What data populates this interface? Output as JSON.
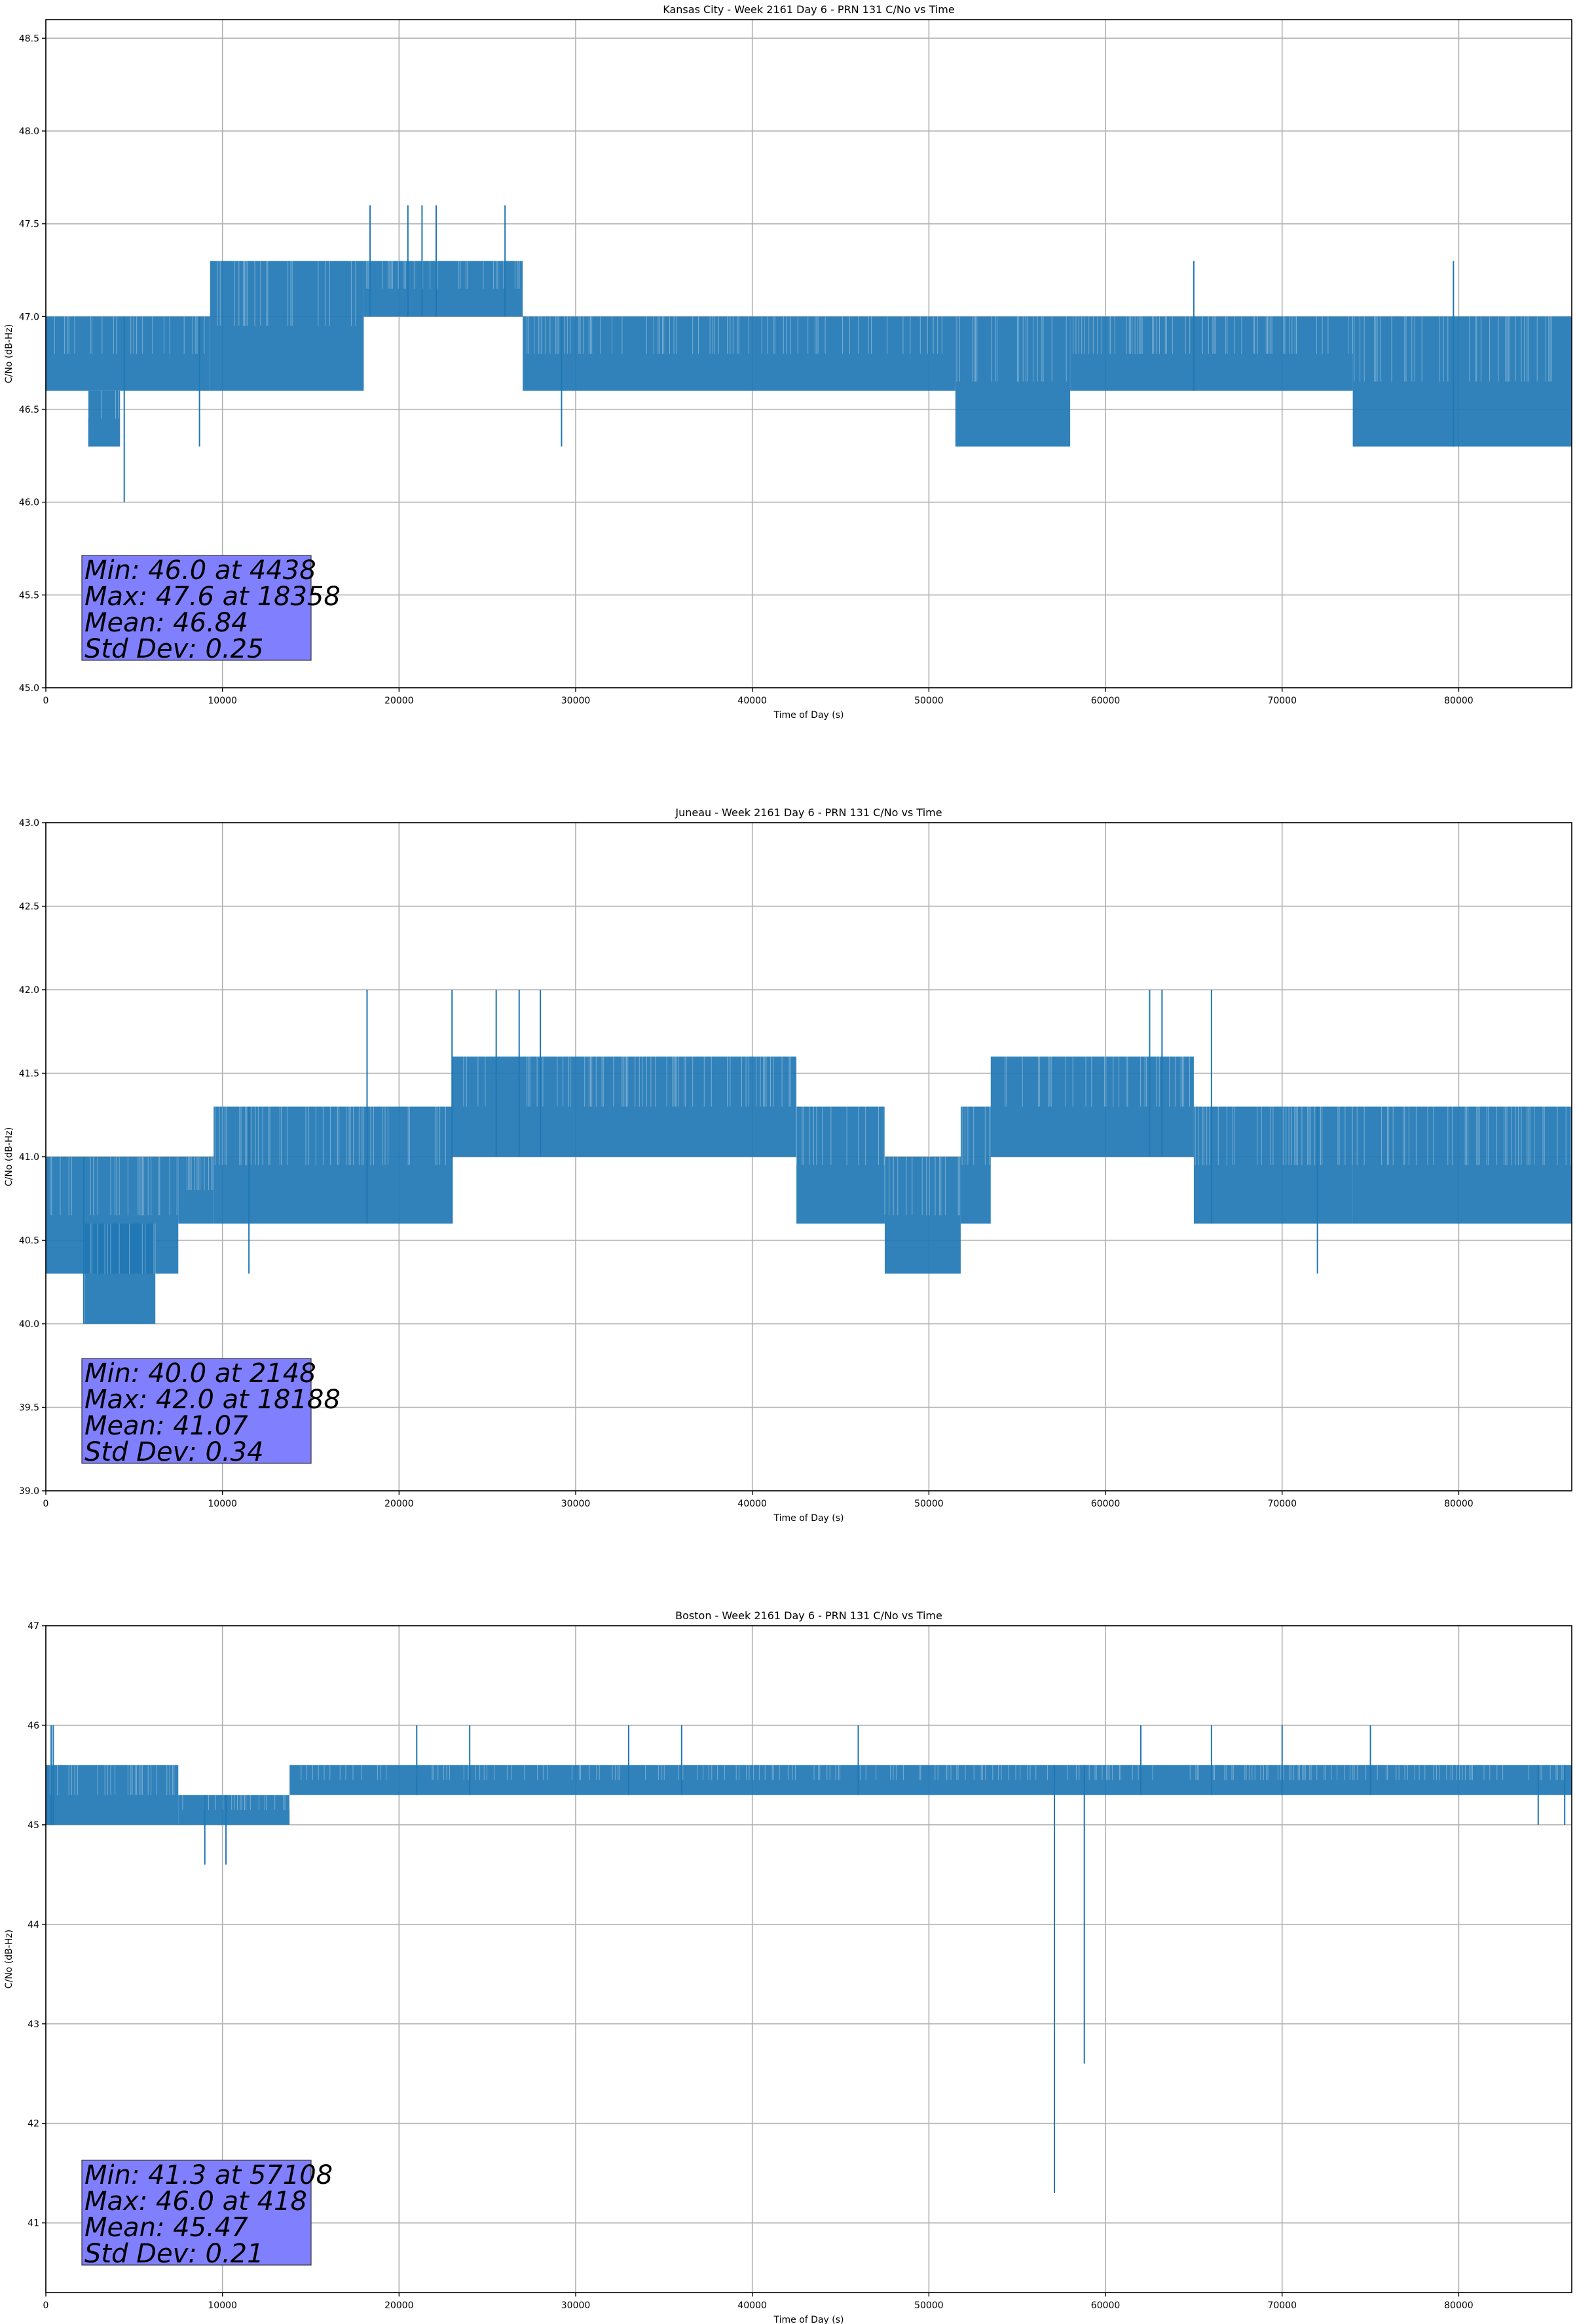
{
  "chart_data": [
    {
      "type": "line",
      "title": "Kansas City - Week 2161 Day 6 - PRN 131 C/No vs Time",
      "xlabel": "Time of Day (s)",
      "ylabel": "C/No (dB-Hz)",
      "xlim": [
        0,
        86400
      ],
      "ylim": [
        45.0,
        48.6
      ],
      "xticks": [
        0,
        10000,
        20000,
        30000,
        40000,
        50000,
        60000,
        70000,
        80000
      ],
      "yticks": [
        45.0,
        45.5,
        46.0,
        46.5,
        47.0,
        47.5,
        48.0,
        48.5
      ],
      "ytick_decimals": 1,
      "grid": true,
      "line_color": "#1f77b4",
      "series_segments": [
        {
          "x": [
            0,
            9300
          ],
          "low": 46.6,
          "high": 47.0
        },
        {
          "x": [
            2400,
            4200
          ],
          "low": 46.3,
          "high": 46.6
        },
        {
          "x": [
            9300,
            18000
          ],
          "low": 46.6,
          "high": 47.3
        },
        {
          "x": [
            18000,
            27000
          ],
          "low": 47.0,
          "high": 47.3
        },
        {
          "x": [
            27000,
            51500
          ],
          "low": 46.6,
          "high": 47.0
        },
        {
          "x": [
            51500,
            58000
          ],
          "low": 46.3,
          "high": 47.0
        },
        {
          "x": [
            58000,
            74000
          ],
          "low": 46.6,
          "high": 47.0
        },
        {
          "x": [
            74000,
            86400
          ],
          "low": 46.3,
          "high": 47.0
        }
      ],
      "spikes": [
        {
          "x": 4438,
          "y": 46.0
        },
        {
          "x": 8700,
          "y": 46.3
        },
        {
          "x": 18358,
          "y": 47.6
        },
        {
          "x": 20500,
          "y": 47.6
        },
        {
          "x": 21300,
          "y": 47.6
        },
        {
          "x": 22100,
          "y": 47.6
        },
        {
          "x": 26000,
          "y": 47.6
        },
        {
          "x": 29200,
          "y": 46.3
        },
        {
          "x": 65000,
          "y": 47.3
        },
        {
          "x": 79700,
          "y": 47.3
        }
      ],
      "stats": [
        "Min: 46.0 at 4438",
        "Max: 47.6 at 18358",
        "Mean: 46.84",
        "Std Dev: 0.25"
      ],
      "stats_box_color": "#8080ff"
    },
    {
      "type": "line",
      "title": "Juneau - Week 2161 Day 6 - PRN 131 C/No vs Time",
      "xlabel": "Time of Day (s)",
      "ylabel": "C/No (dB-Hz)",
      "xlim": [
        0,
        86400
      ],
      "ylim": [
        39.0,
        43.0
      ],
      "xticks": [
        0,
        10000,
        20000,
        30000,
        40000,
        50000,
        60000,
        70000,
        80000
      ],
      "yticks": [
        39.0,
        39.5,
        40.0,
        40.5,
        41.0,
        41.5,
        42.0,
        42.5,
        43.0
      ],
      "ytick_decimals": 1,
      "grid": true,
      "line_color": "#1f77b4",
      "series_segments": [
        {
          "x": [
            0,
            7500
          ],
          "low": 40.3,
          "high": 41.0
        },
        {
          "x": [
            2200,
            6200
          ],
          "low": 40.0,
          "high": 40.6
        },
        {
          "x": [
            7500,
            9500
          ],
          "low": 40.6,
          "high": 41.0
        },
        {
          "x": [
            9500,
            23000
          ],
          "low": 40.6,
          "high": 41.3
        },
        {
          "x": [
            23000,
            42500
          ],
          "low": 41.0,
          "high": 41.6
        },
        {
          "x": [
            42500,
            47500
          ],
          "low": 40.6,
          "high": 41.3
        },
        {
          "x": [
            47500,
            51800
          ],
          "low": 40.3,
          "high": 41.0
        },
        {
          "x": [
            51800,
            53500
          ],
          "low": 40.6,
          "high": 41.3
        },
        {
          "x": [
            53500,
            65000
          ],
          "low": 41.0,
          "high": 41.6
        },
        {
          "x": [
            65000,
            74000
          ],
          "low": 40.6,
          "high": 41.3
        },
        {
          "x": [
            74000,
            86400
          ],
          "low": 40.6,
          "high": 41.3
        }
      ],
      "spikes": [
        {
          "x": 2148,
          "y": 40.0
        },
        {
          "x": 18188,
          "y": 42.0
        },
        {
          "x": 23000,
          "y": 42.0
        },
        {
          "x": 25500,
          "y": 42.0
        },
        {
          "x": 26800,
          "y": 42.0
        },
        {
          "x": 28000,
          "y": 42.0
        },
        {
          "x": 62500,
          "y": 42.0
        },
        {
          "x": 63200,
          "y": 42.0
        },
        {
          "x": 66000,
          "y": 42.0
        },
        {
          "x": 11500,
          "y": 40.3
        },
        {
          "x": 72000,
          "y": 40.3
        }
      ],
      "stats": [
        "Min: 40.0 at 2148",
        "Max: 42.0 at 18188",
        "Mean: 41.07",
        "Std Dev: 0.34"
      ],
      "stats_box_color": "#8080ff"
    },
    {
      "type": "line",
      "title": "Boston - Week 2161 Day 6 - PRN 131 C/No vs Time",
      "xlabel": "Time of Day (s)",
      "ylabel": "C/No (dB-Hz)",
      "xlim": [
        0,
        86400
      ],
      "ylim": [
        40.3,
        47.0
      ],
      "xticks": [
        0,
        10000,
        20000,
        30000,
        40000,
        50000,
        60000,
        70000,
        80000
      ],
      "yticks": [
        41,
        42,
        43,
        44,
        45,
        46,
        47
      ],
      "ytick_decimals": 0,
      "grid": true,
      "line_color": "#1f77b4",
      "series_segments": [
        {
          "x": [
            0,
            7500
          ],
          "low": 45.0,
          "high": 45.6
        },
        {
          "x": [
            7500,
            13800
          ],
          "low": 45.0,
          "high": 45.3
        },
        {
          "x": [
            13800,
            86400
          ],
          "low": 45.3,
          "high": 45.6
        }
      ],
      "spikes": [
        {
          "x": 300,
          "y": 46.0
        },
        {
          "x": 418,
          "y": 46.0
        },
        {
          "x": 9000,
          "y": 44.6
        },
        {
          "x": 10200,
          "y": 44.6
        },
        {
          "x": 57108,
          "y": 41.3
        },
        {
          "x": 58800,
          "y": 42.6
        },
        {
          "x": 21000,
          "y": 46.0
        },
        {
          "x": 24000,
          "y": 46.0
        },
        {
          "x": 33000,
          "y": 46.0
        },
        {
          "x": 36000,
          "y": 46.0
        },
        {
          "x": 46000,
          "y": 46.0
        },
        {
          "x": 62000,
          "y": 46.0
        },
        {
          "x": 66000,
          "y": 46.0
        },
        {
          "x": 70000,
          "y": 46.0
        },
        {
          "x": 75000,
          "y": 46.0
        },
        {
          "x": 84500,
          "y": 45.0
        },
        {
          "x": 86000,
          "y": 45.0
        }
      ],
      "stats": [
        "Min: 41.3 at 57108",
        "Max: 46.0 at 418",
        "Mean: 45.47",
        "Std Dev: 0.21"
      ],
      "stats_box_color": "#8080ff"
    }
  ]
}
